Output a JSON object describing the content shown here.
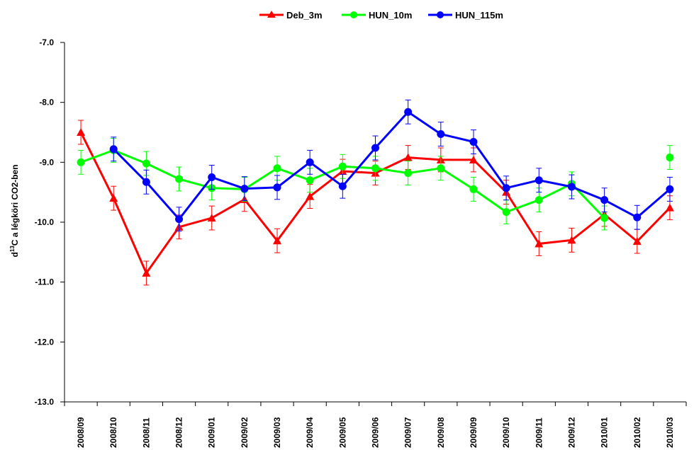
{
  "chart_data": {
    "type": "line",
    "ylabel_main": "d",
    "ylabel_sup": "13",
    "ylabel_rest": "C a légköri CO2-ben",
    "xlabel": "",
    "ylim": [
      -13.0,
      -7.0
    ],
    "yticks": [
      "-7.0",
      "-8.0",
      "-9.0",
      "-10.0",
      "-11.0",
      "-12.0",
      "-13.0"
    ],
    "ytick_values": [
      -7,
      -8,
      -9,
      -10,
      -11,
      -12,
      -13
    ],
    "categories": [
      "2008/09",
      "2008/10",
      "2008/11",
      "2008/12",
      "2009/01",
      "2009/02",
      "2009/03",
      "2009/04",
      "2009/05",
      "2009/06",
      "2009/07",
      "2009/08",
      "2009/09",
      "2009/10",
      "2009/11",
      "2009/12",
      "2010/01",
      "2010/02",
      "2010/03"
    ],
    "legend_position": "top-center",
    "grid": false,
    "series": [
      {
        "name": "Deb_3m",
        "color": "#ff0000",
        "marker": "triangle",
        "values": [
          -8.5,
          -9.6,
          -10.85,
          -10.08,
          -9.93,
          -9.62,
          -10.31,
          -9.57,
          -9.15,
          -9.18,
          -8.92,
          -8.96,
          -8.96,
          -9.5,
          -10.36,
          -10.3,
          -9.87,
          -10.32,
          -9.76
        ],
        "errors": [
          0.2,
          0.2,
          0.2,
          0.2,
          0.2,
          0.2,
          0.2,
          0.2,
          0.2,
          0.2,
          0.2,
          0.2,
          0.2,
          0.2,
          0.2,
          0.2,
          0.2,
          0.2,
          0.2
        ]
      },
      {
        "name": "HUN_10m",
        "color": "#00ff00",
        "marker": "circle",
        "values": [
          -9.0,
          -8.8,
          -9.02,
          -9.28,
          -9.43,
          -9.45,
          -9.1,
          -9.3,
          -9.07,
          -9.1,
          -9.18,
          -9.1,
          -9.45,
          -9.83,
          -9.63,
          -9.36,
          -9.93,
          null,
          -8.92
        ],
        "errors": [
          0.2,
          0.2,
          0.2,
          0.2,
          0.2,
          0.2,
          0.2,
          0.2,
          0.2,
          0.2,
          0.2,
          0.2,
          0.2,
          0.2,
          0.2,
          0.2,
          0.2,
          null,
          0.2
        ]
      },
      {
        "name": "HUN_115m",
        "color": "#0000ff",
        "marker": "circle",
        "values": [
          null,
          -8.78,
          -9.33,
          -9.95,
          -9.25,
          -9.44,
          -9.42,
          -9.0,
          -9.4,
          -8.76,
          -8.16,
          -8.53,
          -8.66,
          -9.43,
          -9.3,
          -9.41,
          -9.63,
          -9.92,
          -9.45
        ],
        "errors": [
          null,
          0.2,
          0.2,
          0.2,
          0.2,
          0.2,
          0.2,
          0.2,
          0.2,
          0.2,
          0.2,
          0.2,
          0.2,
          0.2,
          0.2,
          0.2,
          0.2,
          0.2,
          0.2
        ]
      }
    ]
  }
}
